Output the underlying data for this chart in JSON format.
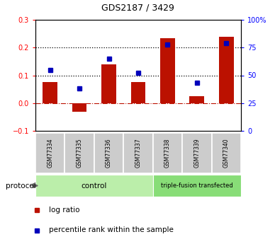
{
  "title": "GDS2187 / 3429",
  "samples": [
    "GSM77334",
    "GSM77335",
    "GSM77336",
    "GSM77337",
    "GSM77338",
    "GSM77339",
    "GSM77340"
  ],
  "log_ratio": [
    0.075,
    -0.03,
    0.14,
    0.075,
    0.235,
    0.025,
    0.24
  ],
  "percentile_rank": [
    55,
    38,
    65,
    52,
    78,
    43,
    79
  ],
  "control_indices": [
    0,
    1,
    2,
    3
  ],
  "tf_indices": [
    4,
    5,
    6
  ],
  "control_label": "control",
  "tf_label": "triple-fusion transfected",
  "control_color": "#bbeeaa",
  "tf_color": "#88dd77",
  "bar_color": "#bb1100",
  "dot_color": "#0000bb",
  "ylim_left": [
    -0.1,
    0.3
  ],
  "ylim_right": [
    0,
    100
  ],
  "yticks_left": [
    -0.1,
    0.0,
    0.1,
    0.2,
    0.3
  ],
  "yticks_right": [
    0,
    25,
    50,
    75,
    100
  ],
  "yticklabels_right": [
    "0",
    "25",
    "50",
    "75",
    "100%"
  ],
  "hline_dotted": [
    0.1,
    0.2
  ],
  "hline_zero": 0.0,
  "protocol_label": "protocol",
  "legend_items": [
    {
      "color": "#bb1100",
      "label": "log ratio"
    },
    {
      "color": "#0000bb",
      "label": "percentile rank within the sample"
    }
  ]
}
